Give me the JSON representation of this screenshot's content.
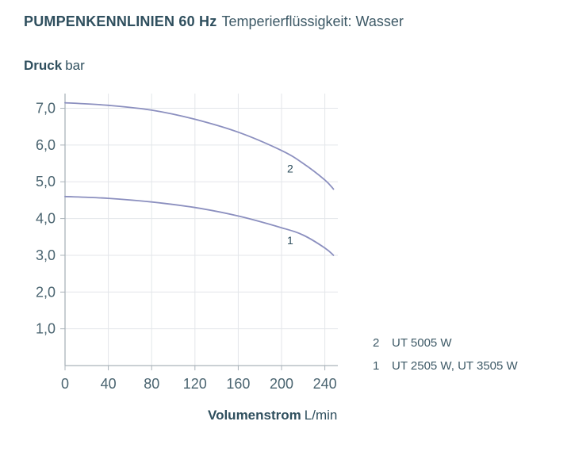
{
  "title": {
    "bold": "PUMPENKENNLINIEN 60 Hz",
    "sub": "Temperierflüssigkeit: Wasser"
  },
  "colors": {
    "curve": "#8b8fbf",
    "grid": "#e3e6ea",
    "axis": "#aab3ba",
    "text": "#2f4f5e"
  },
  "chart_data": {
    "type": "line",
    "title": "PUMPENKENNLINIEN 60 Hz Temperierflüssigkeit: Wasser",
    "ylabel_bold": "Druck",
    "ylabel_unit": "bar",
    "xlabel_bold": "Volumenstrom",
    "xlabel_unit": "L/min",
    "xlim": [
      0,
      252
    ],
    "ylim": [
      0,
      7.4
    ],
    "grid": true,
    "xticks": [
      0,
      40,
      80,
      120,
      160,
      200,
      240
    ],
    "xtick_labels": [
      "0",
      "40",
      "80",
      "120",
      "160",
      "200",
      "240"
    ],
    "yticks": [
      1,
      2,
      3,
      4,
      5,
      6,
      7
    ],
    "ytick_labels": [
      "1,0",
      "2,0",
      "3,0",
      "4,0",
      "5,0",
      "6,0",
      "7,0"
    ],
    "series": [
      {
        "name": "2",
        "label": "2",
        "x": [
          0,
          40,
          80,
          120,
          160,
          200,
          220,
          240,
          248
        ],
        "y": [
          7.15,
          7.08,
          6.95,
          6.7,
          6.35,
          5.85,
          5.5,
          5.05,
          4.8
        ]
      },
      {
        "name": "1",
        "label": "1",
        "x": [
          0,
          40,
          80,
          120,
          160,
          200,
          220,
          240,
          248
        ],
        "y": [
          4.6,
          4.55,
          4.45,
          4.3,
          4.07,
          3.75,
          3.55,
          3.2,
          3.0
        ]
      }
    ],
    "curve_labels": [
      {
        "text": "2",
        "x": 208,
        "y": 5.25
      },
      {
        "text": "1",
        "x": 208,
        "y": 3.3
      }
    ]
  },
  "legend": [
    {
      "num": "2",
      "text": "UT 5005 W"
    },
    {
      "num": "1",
      "text": "UT 2505 W, UT 3505 W"
    }
  ]
}
